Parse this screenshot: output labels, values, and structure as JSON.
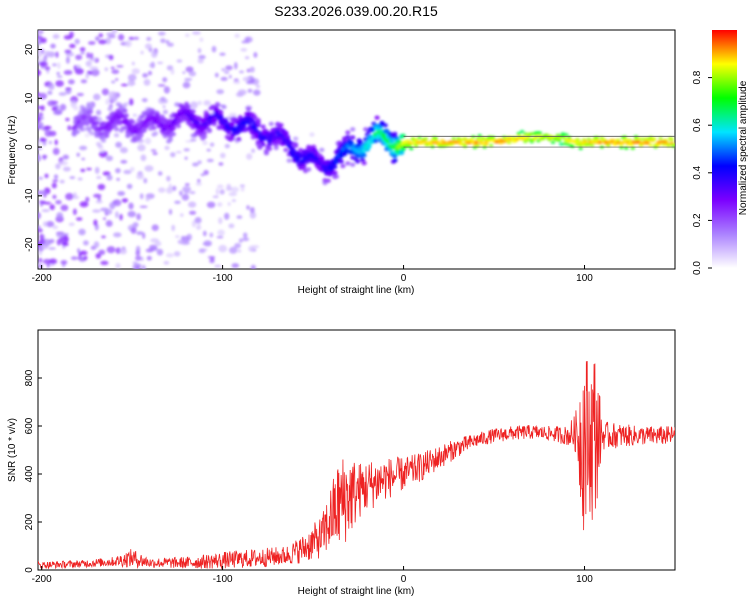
{
  "title": "S233.2026.039.00.20.R15",
  "chart_data": [
    {
      "type": "heatmap",
      "name": "spectrogram",
      "xlabel": "Height of straight line (km)",
      "ylabel": "Frequency (Hz)",
      "xlim": [
        -202,
        150
      ],
      "ylim": [
        -25,
        24
      ],
      "xticks": [
        -200,
        -100,
        0,
        100
      ],
      "yticks": [
        -20,
        -10,
        0,
        10,
        20
      ],
      "colorbar": {
        "label": "Normalized spectral amplitude",
        "range": [
          0,
          1
        ],
        "ticks": [
          "0.0",
          "0.2",
          "0.4",
          "0.6",
          "0.8"
        ],
        "colors": [
          "#ffffff",
          "#ab82ff",
          "#7b00ff",
          "#0000ff",
          "#00e5ff",
          "#00ff00",
          "#ffff00",
          "#ff0000"
        ]
      },
      "ridge": {
        "description_points_x": [
          -175,
          -160,
          -140,
          -120,
          -100,
          -85,
          -70,
          -55,
          -45,
          -35,
          -25,
          -15,
          -5,
          0,
          20,
          50,
          70,
          85,
          95,
          110,
          150
        ],
        "frequency_y": [
          5,
          5,
          4.5,
          6,
          5,
          4,
          2,
          -2,
          -4,
          -2,
          0,
          2,
          1,
          1,
          1,
          1,
          2,
          2,
          1,
          1,
          1
        ],
        "amplitude": [
          0.25,
          0.3,
          0.3,
          0.35,
          0.4,
          0.45,
          0.4,
          0.45,
          0.4,
          0.5,
          0.6,
          0.7,
          0.75,
          0.9,
          0.95,
          0.95,
          0.9,
          0.85,
          0.9,
          0.95,
          0.95
        ]
      }
    },
    {
      "type": "line",
      "name": "snr",
      "xlabel": "Height of straight line (km)",
      "ylabel": "SNR (10 * v/v)",
      "xlim": [
        -202,
        150
      ],
      "ylim": [
        0,
        1000
      ],
      "xticks": [
        -200,
        -100,
        0,
        100
      ],
      "yticks": [
        0,
        200,
        400,
        600,
        800
      ],
      "color": "#ee2222",
      "envelope": {
        "x": [
          -202,
          -180,
          -160,
          -150,
          -140,
          -120,
          -100,
          -80,
          -65,
          -55,
          -45,
          -40,
          -35,
          -30,
          -25,
          -20,
          -10,
          0,
          10,
          20,
          30,
          40,
          50,
          60,
          70,
          80,
          90,
          95,
          98,
          100,
          103,
          105,
          108,
          110,
          120,
          130,
          140,
          150
        ],
        "mean": [
          20,
          25,
          35,
          50,
          30,
          30,
          40,
          50,
          60,
          90,
          140,
          220,
          280,
          310,
          330,
          350,
          380,
          400,
          430,
          470,
          510,
          540,
          560,
          570,
          575,
          570,
          560,
          570,
          560,
          550,
          540,
          560,
          570,
          560,
          560,
          560,
          560,
          560
        ],
        "amplitude": [
          15,
          15,
          20,
          40,
          20,
          25,
          35,
          40,
          40,
          60,
          90,
          140,
          200,
          180,
          120,
          110,
          90,
          70,
          60,
          50,
          40,
          30,
          30,
          30,
          30,
          30,
          40,
          80,
          300,
          420,
          300,
          420,
          200,
          60,
          50,
          40,
          40,
          40
        ]
      }
    }
  ]
}
